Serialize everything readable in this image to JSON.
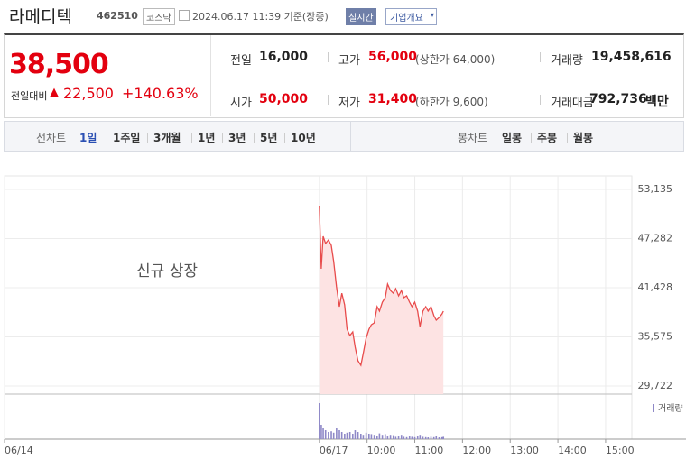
{
  "header": {
    "name": "라메디텍",
    "code": "462510",
    "market": "코스닥",
    "time": "2024.06.17 11:39 기준(장중)",
    "badge": "실시간",
    "button": "기업개요"
  },
  "price": {
    "current": "38,500",
    "change_label": "전일대비",
    "change": "22,500",
    "rate": "+140.63%"
  },
  "stats": {
    "rows": [
      [
        {
          "label": "전일",
          "value": "16,000"
        },
        {
          "label": "고가",
          "value": "56,000",
          "extra": "(상한가 64,000)"
        },
        {
          "label": "거래량",
          "value": "19,458,616"
        }
      ],
      [
        {
          "label": "시가",
          "value": "50,000"
        },
        {
          "label": "저가",
          "value": "31,400",
          "extra": "(하한가 9,600)"
        },
        {
          "label": "거래대금",
          "value": "792,736",
          "unit": "백만"
        }
      ]
    ]
  },
  "tabs": {
    "line_label": "선차트",
    "line_items": [
      "1일",
      "1주일",
      "3개월",
      "1년",
      "3년",
      "5년",
      "10년"
    ],
    "active": 0,
    "candle_label": "봉차트",
    "candle_items": [
      "일봉",
      "주봉",
      "월봉"
    ]
  },
  "chart_data": {
    "type": "line",
    "annotation": "신규 상장",
    "x": [
      9.0,
      9.04,
      9.08,
      9.13,
      9.19,
      9.25,
      9.3,
      9.36,
      9.42,
      9.47,
      9.53,
      9.58,
      9.64,
      9.7,
      9.75,
      9.81,
      9.87,
      9.92,
      9.98,
      10.04,
      10.09,
      10.15,
      10.21,
      10.26,
      10.32,
      10.38,
      10.43,
      10.49,
      10.55,
      10.6,
      10.66,
      10.72,
      10.77,
      10.83,
      10.89,
      10.94,
      11.0,
      11.06,
      11.11,
      11.17,
      11.23,
      11.28,
      11.34,
      11.4,
      11.45,
      11.51,
      11.57,
      11.6
    ],
    "series": [
      {
        "color": "#e84b4b",
        "fill": "#fde3e3",
        "values": [
          51200,
          43684,
          47550,
          46700,
          47120,
          46480,
          44540,
          41540,
          39170,
          40780,
          39390,
          36490,
          35740,
          36170,
          34340,
          32730,
          32190,
          33590,
          35410,
          36490,
          37020,
          37240,
          39170,
          38640,
          39710,
          40250,
          41860,
          41100,
          40780,
          41320,
          40460,
          41100,
          40250,
          40460,
          39710,
          39170,
          39710,
          38640,
          36810,
          38640,
          39170,
          38640,
          39170,
          38100,
          37560,
          37880,
          38310,
          38640
        ]
      },
      {
        "name": "거래량",
        "color": "#8e88c7",
        "values": [
          100,
          40,
          30,
          25,
          20,
          22,
          18,
          30,
          25,
          20,
          15,
          18,
          20,
          15,
          25,
          20,
          15,
          12,
          18,
          15,
          14,
          12,
          10,
          16,
          12,
          14,
          10,
          12,
          11,
          9,
          10,
          12,
          9,
          8,
          10,
          9,
          8,
          10,
          12,
          9,
          8,
          7,
          9,
          8,
          10,
          7,
          8,
          9
        ]
      }
    ],
    "xlim": [
      2.4,
      15.55
    ],
    "xticks": [
      {
        "value": 2.4,
        "label": "06/14"
      },
      {
        "value": 9,
        "label": "06/17"
      },
      {
        "value": 10,
        "label": "10:00"
      },
      {
        "value": 11,
        "label": "11:00"
      },
      {
        "value": 12,
        "label": "12:00"
      },
      {
        "value": 13,
        "label": "13:00"
      },
      {
        "value": 14,
        "label": "14:00"
      },
      {
        "value": 15,
        "label": "15:00"
      }
    ],
    "ylim": [
      28755,
      54750
    ],
    "yticks": [
      {
        "value": 29722,
        "label": "29,722"
      },
      {
        "value": 35575,
        "label": "35,575"
      },
      {
        "value": 41428,
        "label": "41,428"
      },
      {
        "value": 47282,
        "label": "47,282"
      },
      {
        "value": 53135,
        "label": "53,135"
      }
    ],
    "grid": true
  }
}
